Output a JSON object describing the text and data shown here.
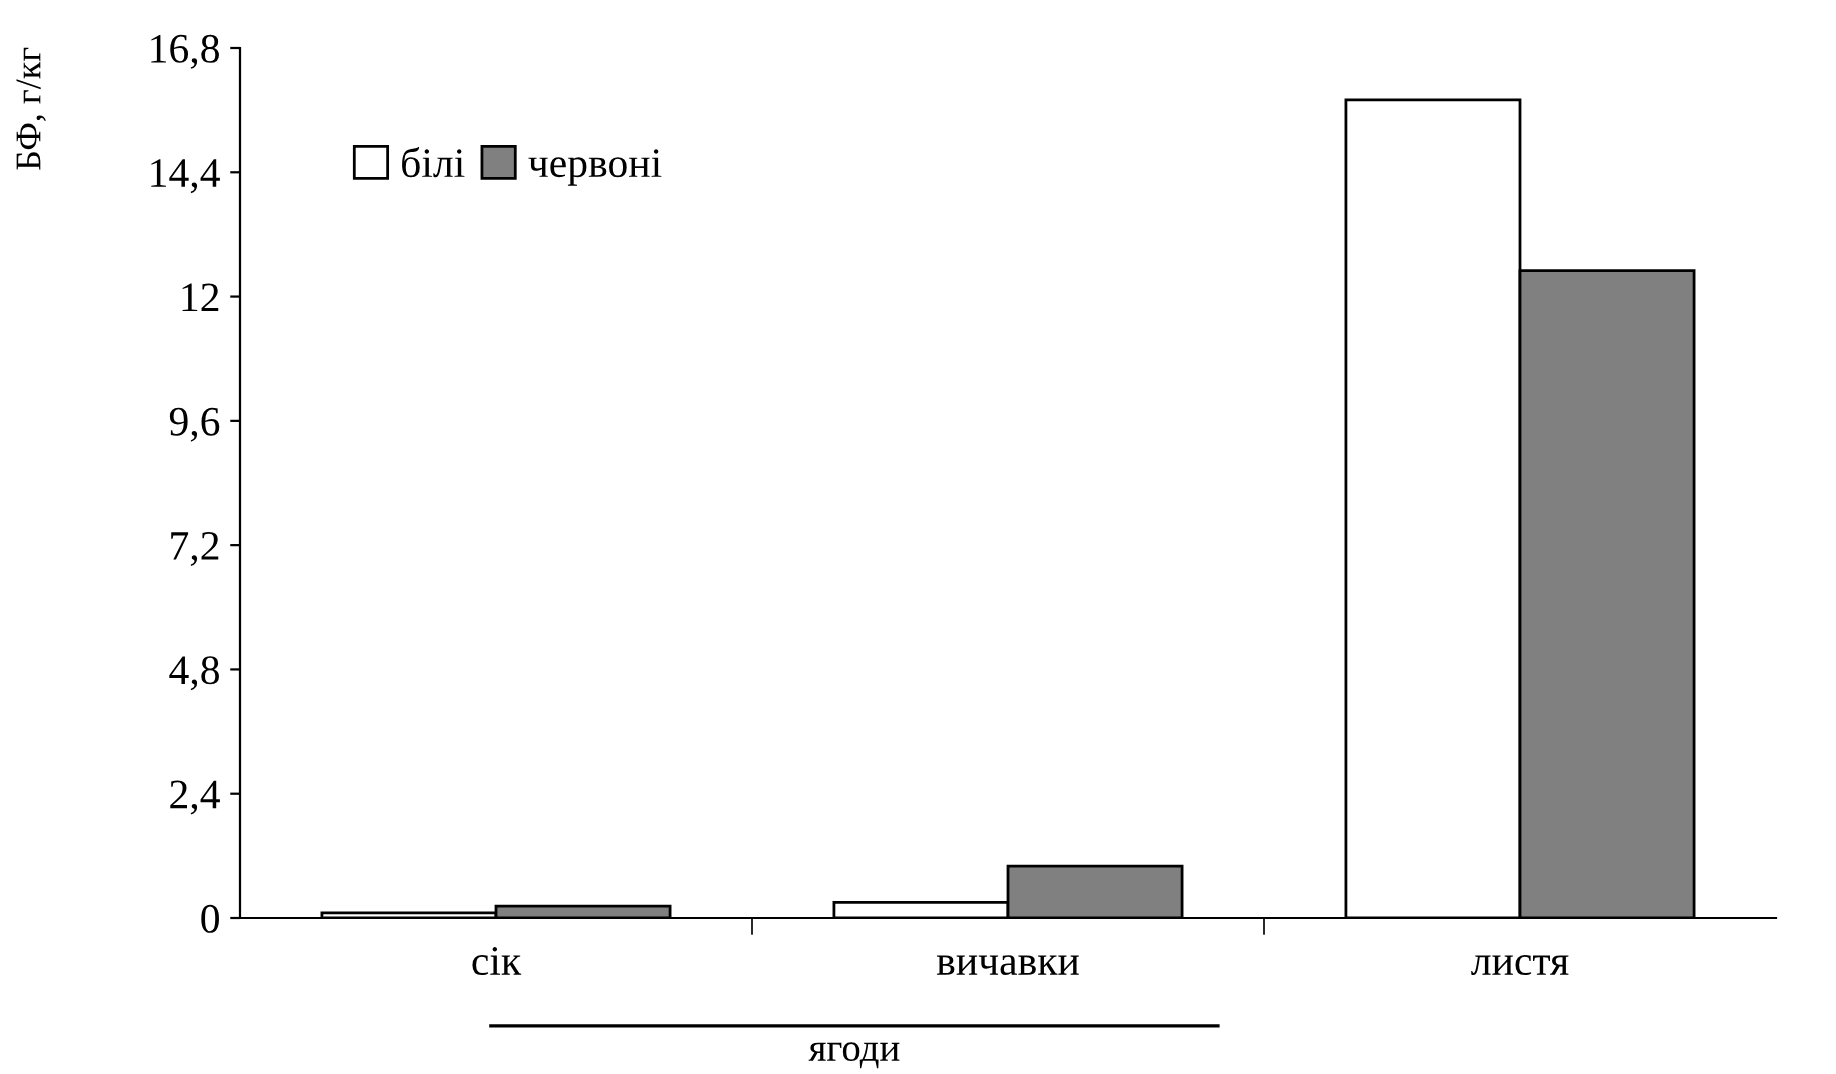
{
  "chart_data": {
    "type": "bar",
    "ylabel": "БФ, г/кг",
    "categories": [
      "сік",
      "вичавки",
      "листя"
    ],
    "series": [
      {
        "name": "білі",
        "color": "#ffffff",
        "values": [
          0.1,
          0.3,
          15.8
        ]
      },
      {
        "name": "червоні",
        "color": "#808080",
        "values": [
          0.23,
          1.0,
          12.5
        ]
      }
    ],
    "ylim": [
      0,
      16.8
    ],
    "yticks": [
      0,
      {
        "value": 2.4,
        "label": "2,4"
      },
      {
        "value": 4.8,
        "label": "4,8"
      },
      {
        "value": 7.2,
        "label": "7,2"
      },
      {
        "value": 9.6,
        "label": "9,6"
      },
      12,
      {
        "value": 14.4,
        "label": "14,4"
      },
      {
        "value": 16.8,
        "label": "16,8"
      }
    ],
    "annotations": [
      "ягоди"
    ],
    "grid": false,
    "legend": "top left"
  }
}
